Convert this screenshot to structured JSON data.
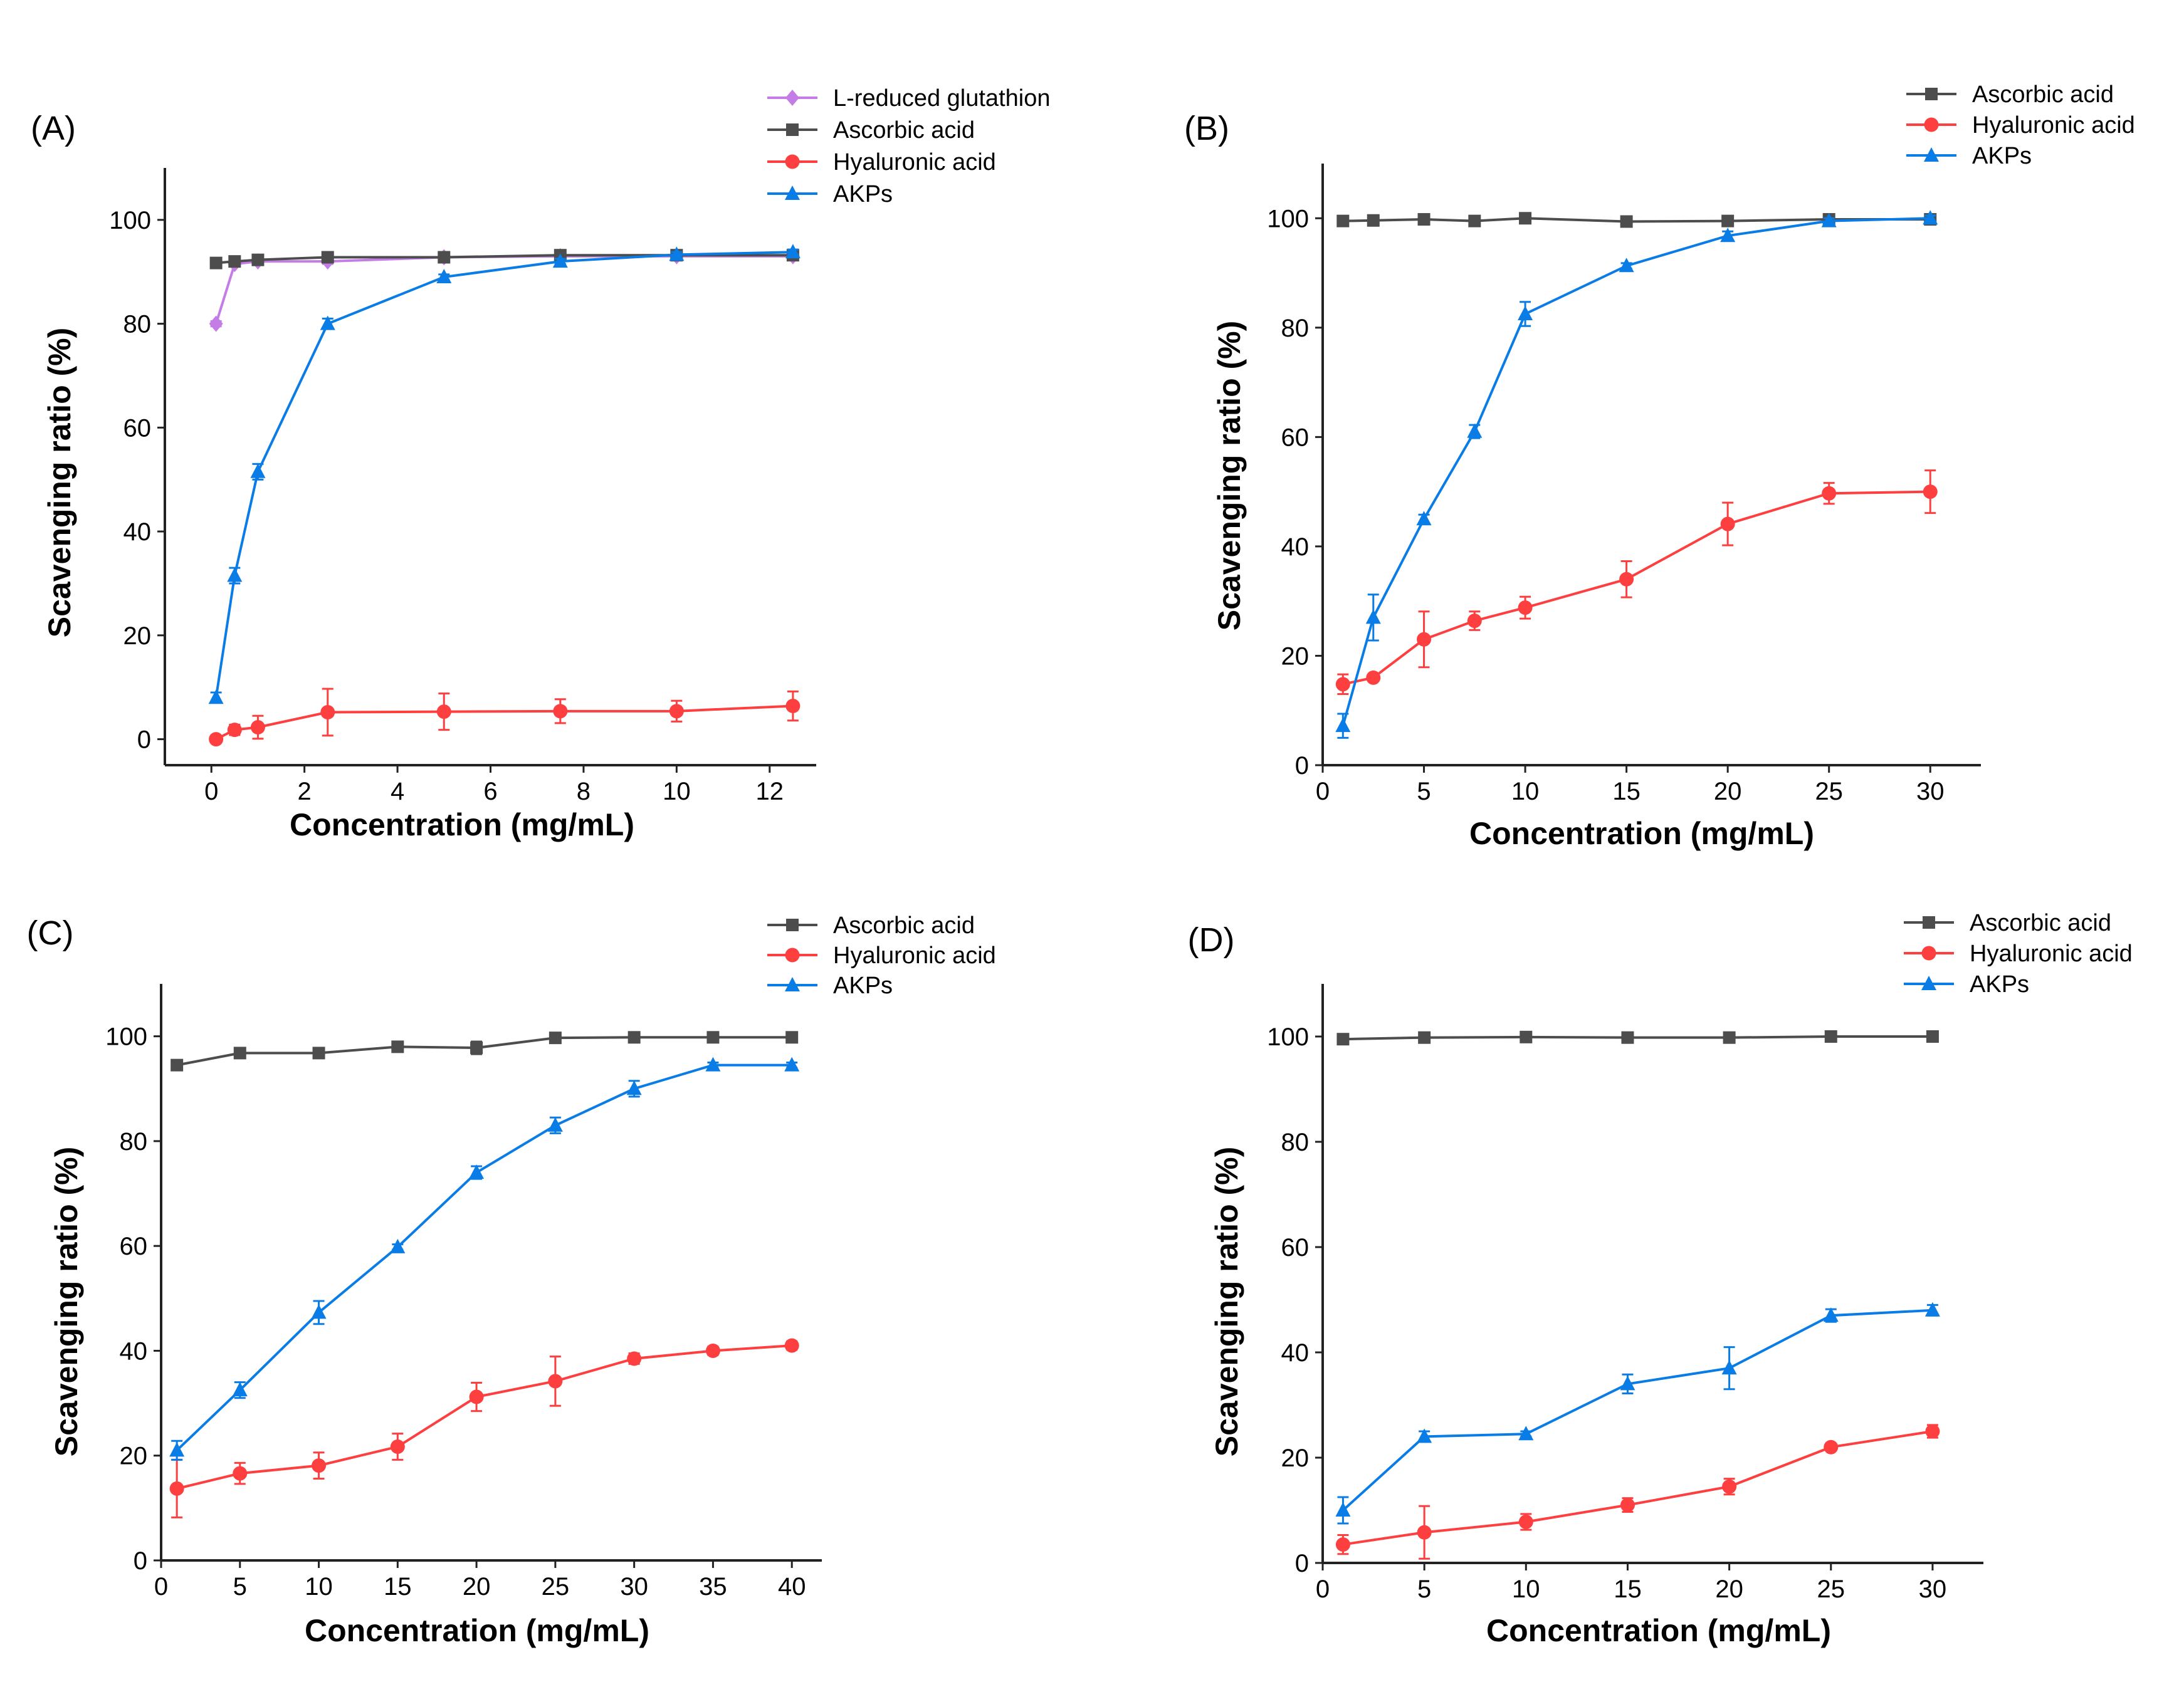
{
  "colors": {
    "L-reduced glutathion": "#c47de6",
    "Ascorbic acid": "#4d4d4d",
    "Hyaluronic acid": "#fd3f3f",
    "AKPs": "#0a7ce6"
  },
  "markers": {
    "L-reduced glutathion": "diamond",
    "Ascorbic acid": "square",
    "Hyaluronic acid": "circle",
    "AKPs": "triangle"
  },
  "chart_data": [
    {
      "type": "line",
      "panel_label": "(A)",
      "xlabel": "Concentration (mg/mL)",
      "ylabel": "Scavenging ratio (%)",
      "xlim": [
        -1,
        13
      ],
      "ylim": [
        -5,
        110
      ],
      "xticks": [
        0,
        2,
        4,
        6,
        8,
        10,
        12
      ],
      "yticks": [
        0,
        20,
        40,
        60,
        80,
        100
      ],
      "legend_position": "top-right",
      "x": [
        0.1,
        0.5,
        1,
        2.5,
        5,
        7.5,
        10,
        12.5
      ],
      "series": [
        {
          "name": "L-reduced glutathion",
          "values": [
            80,
            91.5,
            92,
            92,
            92.8,
            93,
            93,
            93
          ],
          "errors": [
            0.5,
            0.5,
            0.5,
            0.5,
            0.5,
            0.5,
            0.5,
            0.5
          ]
        },
        {
          "name": "Ascorbic acid",
          "values": [
            91.7,
            92,
            92.3,
            92.8,
            92.8,
            93.2,
            93.2,
            93.2
          ],
          "errors": [
            0.5,
            0.5,
            0.5,
            0.5,
            0.5,
            0.5,
            0.5,
            0.5
          ]
        },
        {
          "name": "Hyaluronic acid",
          "values": [
            0,
            1.8,
            2.3,
            5.2,
            5.3,
            5.4,
            5.4,
            6.4
          ],
          "errors": [
            0.3,
            1,
            2.2,
            4.5,
            3.5,
            2.3,
            2,
            2.8
          ]
        },
        {
          "name": "AKPs",
          "values": [
            8,
            31.5,
            51.5,
            80,
            89,
            92,
            93.3,
            93.8
          ],
          "errors": [
            1,
            1.5,
            1.5,
            1,
            0.5,
            0.5,
            0.5,
            0.5
          ]
        }
      ]
    },
    {
      "type": "line",
      "panel_label": "(B)",
      "xlabel": "Concentration (mg/mL)",
      "ylabel": "Scavenging ratio (%)",
      "xlim": [
        0,
        32.5
      ],
      "ylim": [
        0,
        110
      ],
      "xticks": [
        0,
        5,
        10,
        15,
        20,
        25,
        30
      ],
      "yticks": [
        0,
        20,
        40,
        60,
        80,
        100
      ],
      "legend_position": "top-right",
      "x": [
        1,
        2.5,
        5,
        7.5,
        10,
        15,
        20,
        25,
        30
      ],
      "series": [
        {
          "name": "Ascorbic acid",
          "values": [
            99.5,
            99.6,
            99.8,
            99.5,
            100,
            99.4,
            99.5,
            99.8,
            99.8
          ],
          "errors": [
            0.4,
            0.4,
            0.4,
            0.4,
            0.4,
            0.4,
            0.4,
            0.4,
            0.4
          ]
        },
        {
          "name": "Hyaluronic acid",
          "values": [
            14.8,
            16,
            23,
            26.4,
            28.8,
            34,
            44.1,
            49.7,
            50
          ],
          "errors": [
            1.8,
            0.5,
            5.1,
            1.7,
            2,
            3.3,
            3.9,
            1.9,
            3.9
          ]
        },
        {
          "name": "AKPs",
          "values": [
            7.2,
            27,
            45,
            61,
            82.5,
            91.3,
            96.8,
            99.5,
            100
          ],
          "errors": [
            2.2,
            4.2,
            0.8,
            1.2,
            2.2,
            0.5,
            0.8,
            0.5,
            0.5
          ]
        }
      ]
    },
    {
      "type": "line",
      "panel_label": "(C)",
      "xlabel": "Concentration (mg/mL)",
      "ylabel": "Scavenging ratio (%)",
      "xlim": [
        0,
        41.9
      ],
      "ylim": [
        0,
        110
      ],
      "xticks": [
        0,
        5,
        10,
        15,
        20,
        25,
        30,
        35,
        40
      ],
      "yticks": [
        0,
        20,
        40,
        60,
        80,
        100
      ],
      "legend_position": "top-right",
      "x": [
        1,
        5,
        10,
        15,
        20,
        25,
        30,
        35,
        40
      ],
      "series": [
        {
          "name": "Ascorbic acid",
          "values": [
            94.5,
            96.8,
            96.8,
            98,
            97.8,
            99.7,
            99.8,
            99.8,
            99.8
          ],
          "errors": [
            0.4,
            0.4,
            0.4,
            0.4,
            1.2,
            0.4,
            0.4,
            0.4,
            0.4
          ]
        },
        {
          "name": "Hyaluronic acid",
          "values": [
            13.7,
            16.6,
            18.1,
            21.7,
            31.2,
            34.2,
            38.5,
            40,
            41
          ],
          "errors": [
            5.5,
            2,
            2.5,
            2.5,
            2.7,
            4.7,
            1,
            0.8,
            0.8
          ]
        },
        {
          "name": "AKPs",
          "values": [
            21,
            32.5,
            47.3,
            59.8,
            74,
            83,
            90,
            94.5,
            94.5
          ],
          "errors": [
            1.8,
            1.5,
            2.2,
            0.5,
            1.2,
            1.5,
            1.5,
            0.5,
            0.5
          ]
        }
      ]
    },
    {
      "type": "line",
      "panel_label": "(D)",
      "xlabel": "Concentration (mg/mL)",
      "ylabel": "Scavenging ratio (%)",
      "xlim": [
        0,
        32.5
      ],
      "ylim": [
        0,
        110
      ],
      "xticks": [
        0,
        5,
        10,
        15,
        20,
        25,
        30
      ],
      "yticks": [
        0,
        20,
        40,
        60,
        80,
        100
      ],
      "legend_position": "top-right",
      "x": [
        1,
        5,
        10,
        15,
        20,
        25,
        30
      ],
      "series": [
        {
          "name": "Ascorbic acid",
          "values": [
            99.5,
            99.8,
            99.9,
            99.8,
            99.8,
            100,
            100
          ],
          "errors": [
            0.3,
            0.3,
            0.3,
            0.3,
            0.3,
            0.3,
            0.3
          ]
        },
        {
          "name": "Hyaluronic acid",
          "values": [
            3.5,
            5.8,
            7.8,
            11,
            14.5,
            22,
            25
          ],
          "errors": [
            1.8,
            5,
            1.5,
            1.3,
            1.5,
            0.5,
            1.2
          ]
        },
        {
          "name": "AKPs",
          "values": [
            10,
            24,
            24.5,
            34,
            37,
            47,
            48
          ],
          "errors": [
            2.5,
            1,
            0.5,
            1.8,
            4,
            1.2,
            1
          ]
        }
      ]
    }
  ]
}
